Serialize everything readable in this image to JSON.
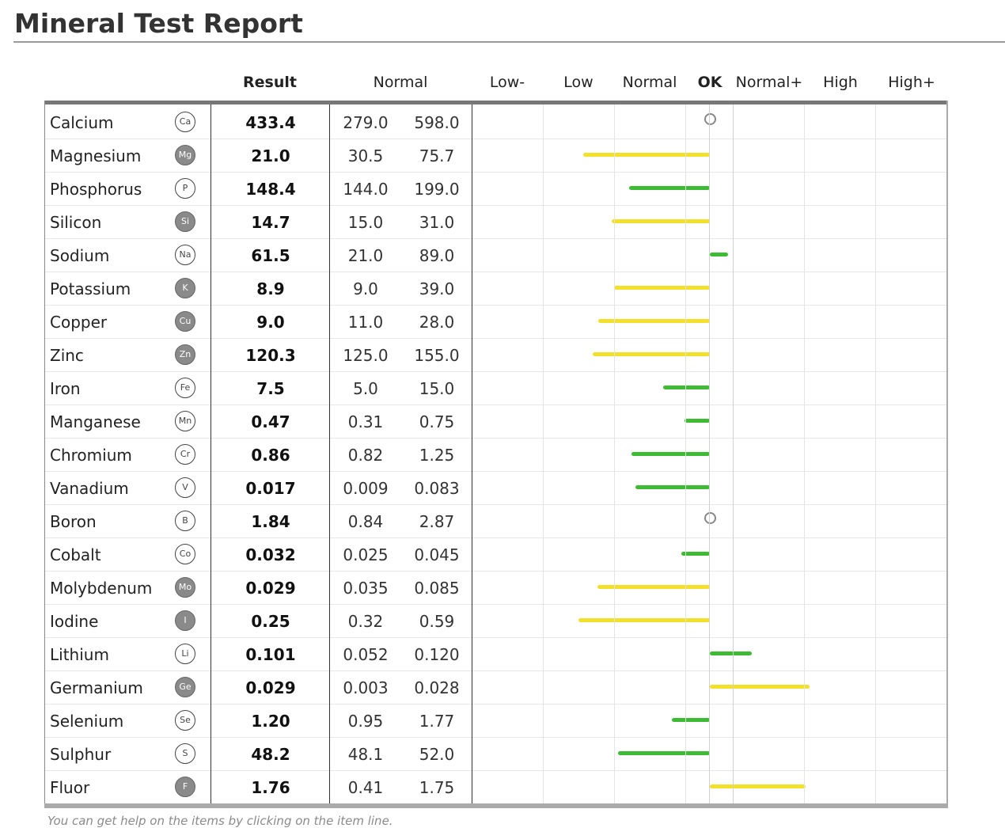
{
  "title": "Mineral Test Report",
  "headers": {
    "result": "Result",
    "normal": "Normal",
    "scale": [
      "Low-",
      "Low",
      "Normal",
      "OK",
      "Normal+",
      "High",
      "High+"
    ]
  },
  "footer": "You can get help on the items by clicking on the item line.",
  "colors": {
    "green": "#3dbb33",
    "yellow": "#f3e02a"
  },
  "rows": [
    {
      "name": "Calcium",
      "symbol": "Ca",
      "filled": false,
      "result": "433.4",
      "normal_low": "279.0",
      "normal_high": "598.0",
      "bar": "none"
    },
    {
      "name": "Magnesium",
      "symbol": "Mg",
      "filled": true,
      "result": "21.0",
      "normal_low": "30.5",
      "normal_high": "75.7",
      "bar": "yellow",
      "extent": -1.78
    },
    {
      "name": "Phosphorus",
      "symbol": "P",
      "filled": false,
      "result": "148.4",
      "normal_low": "144.0",
      "normal_high": "199.0",
      "bar": "green",
      "extent": -1.13
    },
    {
      "name": "Silicon",
      "symbol": "Si",
      "filled": true,
      "result": "14.7",
      "normal_low": "15.0",
      "normal_high": "31.0",
      "bar": "yellow",
      "extent": -1.38
    },
    {
      "name": "Sodium",
      "symbol": "Na",
      "filled": false,
      "result": "61.5",
      "normal_low": "21.0",
      "normal_high": "89.0",
      "bar": "green",
      "extent": 0.25
    },
    {
      "name": "Potassium",
      "symbol": "K",
      "filled": true,
      "result": "8.9",
      "normal_low": "9.0",
      "normal_high": "39.0",
      "bar": "yellow",
      "extent": -1.34
    },
    {
      "name": "Copper",
      "symbol": "Cu",
      "filled": true,
      "result": "9.0",
      "normal_low": "11.0",
      "normal_high": "28.0",
      "bar": "yellow",
      "extent": -1.57
    },
    {
      "name": "Zinc",
      "symbol": "Zn",
      "filled": true,
      "result": "120.3",
      "normal_low": "125.0",
      "normal_high": "155.0",
      "bar": "yellow",
      "extent": -1.64
    },
    {
      "name": "Iron",
      "symbol": "Fe",
      "filled": false,
      "result": "7.5",
      "normal_low": "5.0",
      "normal_high": "15.0",
      "bar": "green",
      "extent": -0.66
    },
    {
      "name": "Manganese",
      "symbol": "Mn",
      "filled": false,
      "result": "0.47",
      "normal_low": "0.31",
      "normal_high": "0.75",
      "bar": "green",
      "extent": -0.36
    },
    {
      "name": "Chromium",
      "symbol": "Cr",
      "filled": false,
      "result": "0.86",
      "normal_low": "0.82",
      "normal_high": "1.25",
      "bar": "green",
      "extent": -1.1
    },
    {
      "name": "Vanadium",
      "symbol": "V",
      "filled": false,
      "result": "0.017",
      "normal_low": "0.009",
      "normal_high": "0.083",
      "bar": "green",
      "extent": -1.04
    },
    {
      "name": "Boron",
      "symbol": "B",
      "filled": false,
      "result": "1.84",
      "normal_low": "0.84",
      "normal_high": "2.87",
      "bar": "none"
    },
    {
      "name": "Cobalt",
      "symbol": "Co",
      "filled": false,
      "result": "0.032",
      "normal_low": "0.025",
      "normal_high": "0.045",
      "bar": "green",
      "extent": -0.4
    },
    {
      "name": "Molybdenum",
      "symbol": "Mo",
      "filled": true,
      "result": "0.029",
      "normal_low": "0.035",
      "normal_high": "0.085",
      "bar": "yellow",
      "extent": -1.58
    },
    {
      "name": "Iodine",
      "symbol": "I",
      "filled": true,
      "result": "0.25",
      "normal_low": "0.32",
      "normal_high": "0.59",
      "bar": "yellow",
      "extent": -1.84
    },
    {
      "name": "Lithium",
      "symbol": "Li",
      "filled": false,
      "result": "0.101",
      "normal_low": "0.052",
      "normal_high": "0.120",
      "bar": "green",
      "extent": 0.59
    },
    {
      "name": "Germanium",
      "symbol": "Ge",
      "filled": true,
      "result": "0.029",
      "normal_low": "0.003",
      "normal_high": "0.028",
      "bar": "yellow",
      "extent": 1.4
    },
    {
      "name": "Selenium",
      "symbol": "Se",
      "filled": false,
      "result": "1.20",
      "normal_low": "0.95",
      "normal_high": "1.77",
      "bar": "green",
      "extent": -0.53
    },
    {
      "name": "Sulphur",
      "symbol": "S",
      "filled": false,
      "result": "48.2",
      "normal_low": "48.1",
      "normal_high": "52.0",
      "bar": "green",
      "extent": -1.29
    },
    {
      "name": "Fluor",
      "symbol": "F",
      "filled": true,
      "result": "1.76",
      "normal_low": "0.41",
      "normal_high": "1.75",
      "bar": "yellow",
      "extent": 1.34
    }
  ]
}
